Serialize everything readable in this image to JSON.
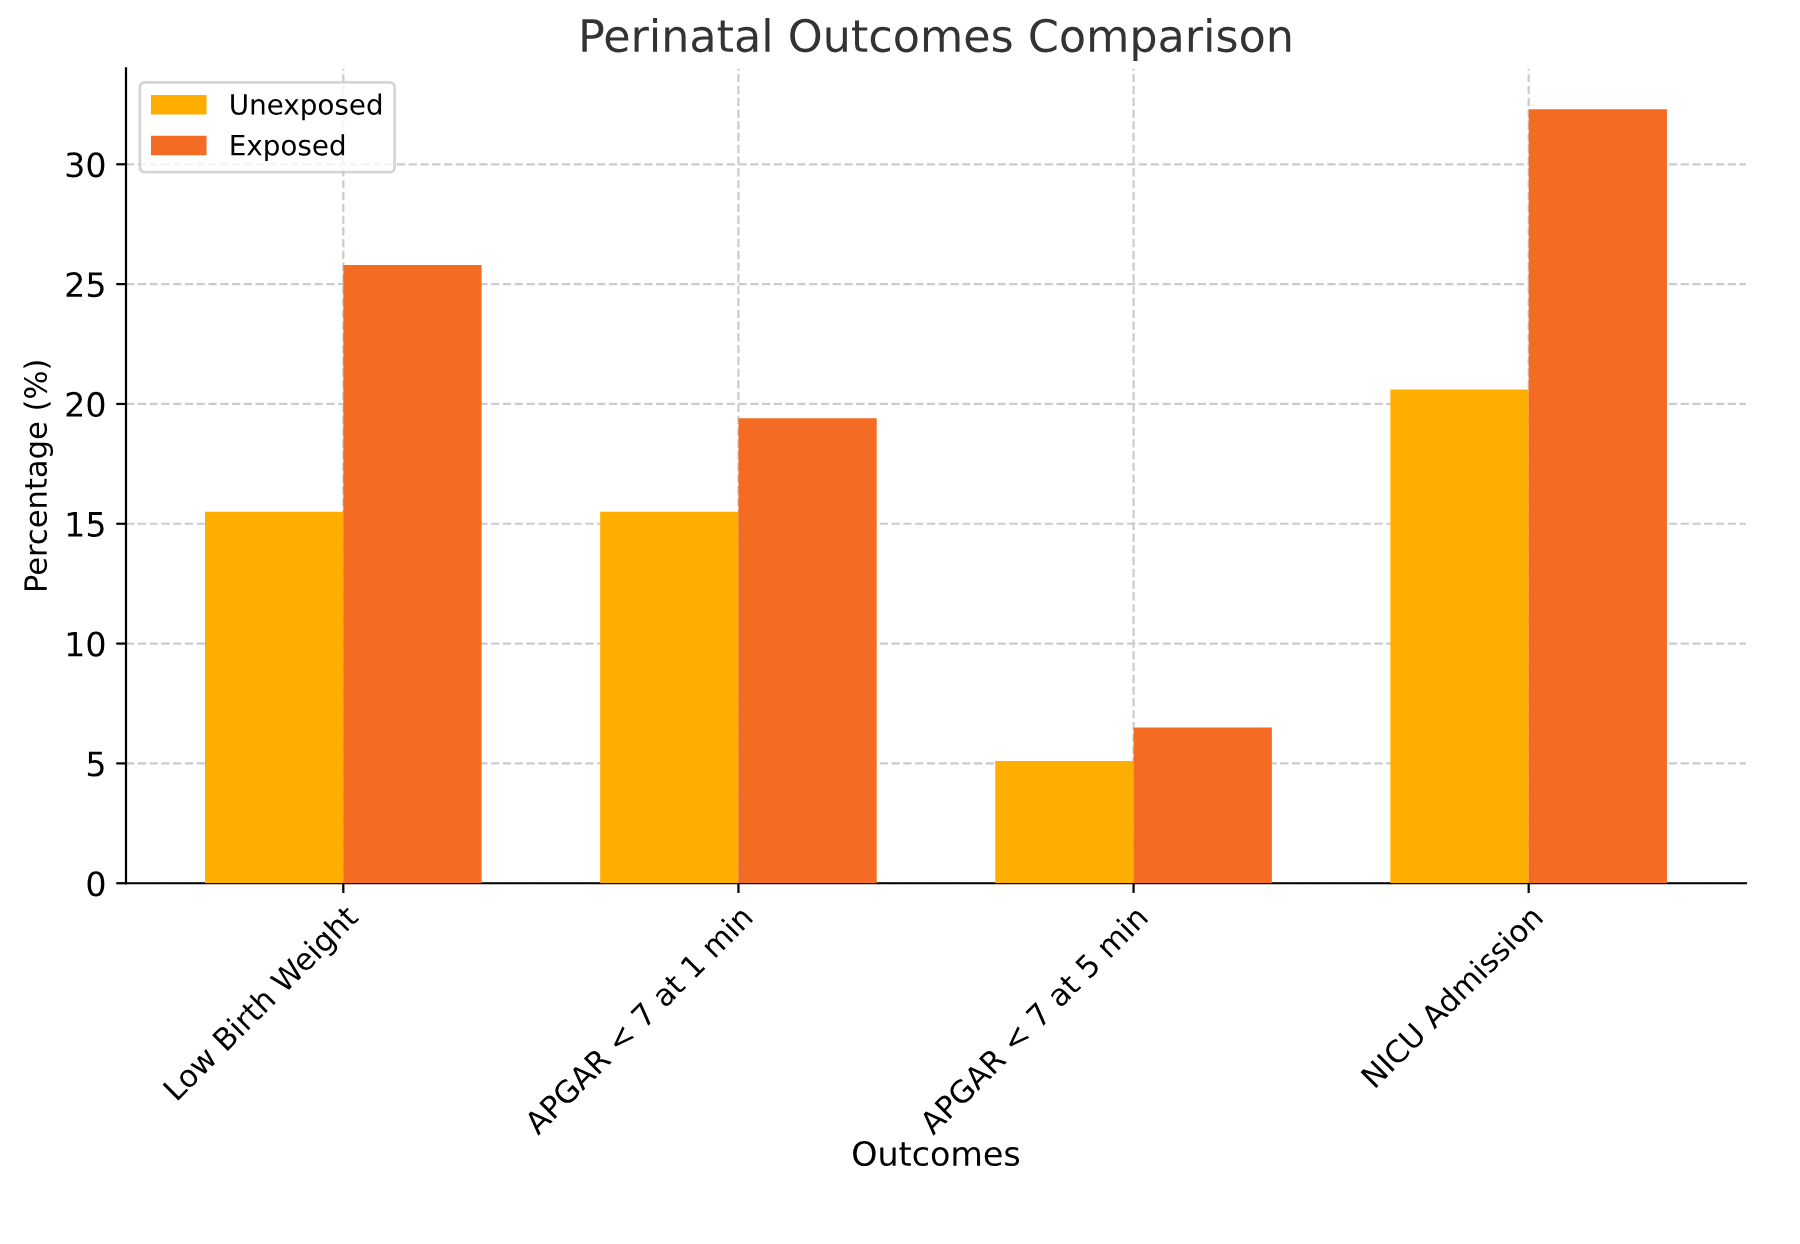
{
  "chart_data": {
    "type": "bar",
    "title": "Perinatal Outcomes Comparison",
    "xlabel": "Outcomes",
    "ylabel": "Percentage (%)",
    "categories": [
      "Low Birth Weight",
      "APGAR < 7 at 1 min",
      "APGAR < 7 at 5 min",
      "NICU Admission"
    ],
    "series": [
      {
        "name": "Unexposed",
        "color": "#ffae00",
        "values": [
          15.5,
          15.5,
          5.1,
          20.6
        ]
      },
      {
        "name": "Exposed",
        "color": "#f46b23",
        "values": [
          25.8,
          19.4,
          6.5,
          32.3
        ]
      }
    ],
    "ylim": [
      0,
      34
    ],
    "yticks": [
      0,
      5,
      10,
      15,
      20,
      25,
      30
    ],
    "grid": true,
    "legend": "top left"
  }
}
